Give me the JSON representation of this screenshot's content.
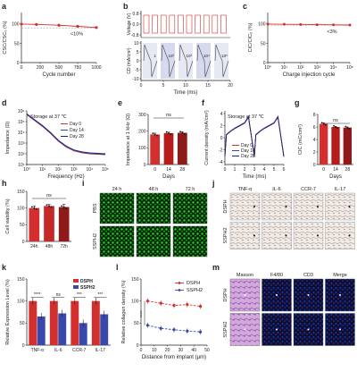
{
  "panels": {
    "a": "a",
    "b": "b",
    "c": "c",
    "d": "d",
    "e": "e",
    "f": "f",
    "g": "g",
    "h": "h",
    "i": "i",
    "j": "j",
    "k": "k",
    "l": "l",
    "m": "m"
  },
  "colors": {
    "red": "#d32f2f",
    "darkred": "#8e1a1a",
    "blue": "#3949ab",
    "navy": "#1a237e",
    "grid": "#bbbbbb",
    "fluor_green": "#27c21f",
    "ihc_bg": "#efe9e4",
    "he_pink": "#c99ad6",
    "if_blue": "#1630a8"
  },
  "a": {
    "ylabel": "CSC/CSC₀ (%)",
    "xlabel": "Cycle number",
    "yticks": [
      "0",
      "50",
      "100"
    ],
    "xticks": [
      "0",
      "200",
      "500",
      "750",
      "1000"
    ],
    "annotation": "<10%"
  },
  "b": {
    "ylabel_top": "Voltage (V)",
    "ylabel_bot": "CD (mA/cm²)",
    "yticks_top": [
      "0.8",
      "0.0",
      "-0.8"
    ],
    "yticks_bot": [
      "10",
      "5",
      "0",
      "-5",
      "-10"
    ],
    "xticks": [
      "0",
      "5",
      "10",
      "15",
      "20"
    ],
    "xlabel": "Time (ms)",
    "cycle_labels": [
      "1",
      "10²",
      "10³",
      "10⁴",
      "10⁵"
    ]
  },
  "c": {
    "ylabel": "CIC/CIC₀ (%)",
    "xlabel": "Charge injection cycle",
    "yticks": [
      "0",
      "50",
      "100"
    ],
    "xticks": [
      "10⁰",
      "10¹",
      "10²",
      "10³",
      "10⁴",
      "10⁵"
    ],
    "annotation": "<3%"
  },
  "d": {
    "ylabel": "Impedance (Ω)",
    "xlabel": "Frequency (Hz)",
    "yticks": [
      "10⁶",
      "10⁵",
      "10⁴",
      "10³",
      "10²",
      "10¹"
    ],
    "xticks": [
      "10⁰",
      "10¹",
      "10²",
      "10³",
      "10⁴",
      "10⁵"
    ],
    "note": "Storage at 37 ℃",
    "legend": [
      "Day 0",
      "Day 14",
      "Day 28"
    ]
  },
  "e": {
    "ylabel": "Impedance at 1 kHz (Ω)",
    "xlabel": "Days",
    "yticks": [
      "0",
      "100",
      "200",
      "300"
    ],
    "categories": [
      "0",
      "14",
      "28"
    ],
    "ns": "ns"
  },
  "f": {
    "ylabel": "Current density (mA/cm²)",
    "xlabel": "Time (ms)",
    "yticks": [
      "4",
      "2",
      "0",
      "-2",
      "-4"
    ],
    "xticks": [
      "0",
      "1",
      "2",
      "3",
      "4",
      "5",
      "6"
    ],
    "note": "Storage at 37 ℃",
    "legend": [
      "Day 0",
      "Day 14",
      "Day 28"
    ]
  },
  "g": {
    "ylabel": "CIC (mC/cm²)",
    "xlabel": "Days",
    "yticks": [
      "0",
      "2",
      "4",
      "6",
      "8"
    ],
    "categories": [
      "0",
      "14",
      "28"
    ],
    "ns": "ns"
  },
  "h": {
    "ylabel": "Cell viability (%)",
    "yticks": [
      "0",
      "50",
      "100",
      "150"
    ],
    "categories": [
      "24h",
      "48h",
      "72h"
    ],
    "ns": "ns"
  },
  "i": {
    "cols": [
      "24 h",
      "48 h",
      "72 h"
    ],
    "rows": [
      "PBS",
      "SSPH2"
    ]
  },
  "j": {
    "cols": [
      "TNF-α",
      "IL-6",
      "CCR-7",
      "IL-17"
    ],
    "rows": [
      "DSPH",
      "SSPH2"
    ]
  },
  "k": {
    "ylabel": "Relative Expression Level (%)",
    "yticks": [
      "0",
      "50",
      "100",
      "150"
    ],
    "categories": [
      "TNF-α",
      "IL-6",
      "CCR-7",
      "IL-17"
    ],
    "legend": [
      "DSPH",
      "SSPH2"
    ],
    "sig": [
      "****",
      "ns",
      "***",
      "***"
    ]
  },
  "l": {
    "ylabel": "Relative collagen density (%)",
    "xlabel": "Distance from implant (μm)",
    "yticks": [
      "0",
      "50",
      "100",
      "150"
    ],
    "xticks": [
      "0",
      "10",
      "20",
      "30",
      "40",
      "50"
    ],
    "legend": [
      "DSPH",
      "SSPH2"
    ],
    "sig": "****"
  },
  "m": {
    "cols": [
      "Masson",
      "F4/80",
      "CD3",
      "Merge"
    ],
    "rows": [
      "DSPH",
      "SSPH2"
    ]
  },
  "chart_data": [
    {
      "panel": "a",
      "type": "line",
      "x": [
        0,
        200,
        500,
        750,
        1000
      ],
      "values": [
        100,
        99,
        97,
        94,
        91
      ],
      "ylim": [
        0,
        130
      ],
      "xlim": [
        0,
        1000
      ],
      "ylabel": "CSC/CSC₀ (%)",
      "xlabel": "Cycle number"
    },
    {
      "panel": "c",
      "type": "line",
      "x": [
        0,
        1,
        2,
        3,
        4,
        5
      ],
      "values": [
        100,
        99.5,
        99,
        98.5,
        98,
        97.5
      ],
      "ylim": [
        0,
        130
      ],
      "xlim": [
        0,
        5
      ],
      "ylabel": "CIC/CIC₀ (%)",
      "xlabel": "Charge injection cycle"
    },
    {
      "panel": "d",
      "type": "line",
      "x": [
        0,
        0.5,
        1,
        1.5,
        2,
        2.5,
        3,
        3.5,
        4,
        4.5,
        5
      ],
      "series": [
        {
          "name": "Day 0",
          "values": [
            6.1,
            5.5,
            4.9,
            4.2,
            3.4,
            2.8,
            2.4,
            2.2,
            2.1,
            2.05,
            2.0
          ]
        },
        {
          "name": "Day 14",
          "values": [
            6.15,
            5.55,
            4.95,
            4.25,
            3.45,
            2.85,
            2.45,
            2.25,
            2.15,
            2.1,
            2.05
          ]
        },
        {
          "name": "Day 28",
          "values": [
            6.2,
            5.6,
            5.0,
            4.3,
            3.5,
            2.9,
            2.5,
            2.3,
            2.2,
            2.15,
            2.1
          ]
        }
      ],
      "ylim": [
        1,
        6.5
      ],
      "xlim": [
        0,
        5
      ],
      "ylabel": "Impedance (Ω)",
      "xlabel": "Frequency (Hz)"
    },
    {
      "panel": "e",
      "type": "bar",
      "categories": [
        "0",
        "14",
        "28"
      ],
      "values": [
        180,
        188,
        190
      ],
      "ylim": [
        0,
        300
      ],
      "ylabel": "Impedance at 1 kHz (Ω)"
    },
    {
      "panel": "f",
      "type": "line",
      "x": [
        0,
        0.15,
        0.6,
        1,
        1.5,
        2,
        2.4,
        3,
        3.15,
        3.6,
        4,
        4.5,
        5,
        5.4,
        6
      ],
      "series": [
        {
          "name": "Day 0",
          "values": [
            -3.6,
            0.6,
            1.3,
            1.8,
            2.3,
            2.8,
            4.0,
            -3.6,
            0.6,
            1.3,
            1.8,
            2.3,
            2.8,
            4.0,
            -3.6
          ]
        },
        {
          "name": "Day 14",
          "values": [
            -3.5,
            0.55,
            1.25,
            1.75,
            2.25,
            2.75,
            3.9,
            -3.5,
            0.55,
            1.25,
            1.75,
            2.25,
            2.75,
            3.9,
            -3.5
          ]
        },
        {
          "name": "Day 28",
          "values": [
            -3.4,
            0.5,
            1.2,
            1.7,
            2.2,
            2.7,
            3.8,
            -3.4,
            0.5,
            1.2,
            1.7,
            2.2,
            2.7,
            3.8,
            -3.4
          ]
        }
      ],
      "ylim": [
        -5,
        5
      ],
      "xlim": [
        0,
        6
      ],
      "ylabel": "Current density (mA/cm²)",
      "xlabel": "Time (ms)"
    },
    {
      "panel": "g",
      "type": "bar",
      "categories": [
        "0",
        "14",
        "28"
      ],
      "values": [
        6.5,
        6.0,
        5.9
      ],
      "ylim": [
        0,
        8
      ],
      "ylabel": "CIC (mC/cm²)"
    },
    {
      "panel": "h",
      "type": "bar",
      "categories": [
        "24h",
        "48h",
        "72h"
      ],
      "values": [
        100,
        106,
        103
      ],
      "ylim": [
        0,
        150
      ],
      "ylabel": "Cell viability (%)"
    },
    {
      "panel": "k",
      "type": "bar",
      "categories": [
        "TNF-α",
        "IL-6",
        "CCR-7",
        "IL-17"
      ],
      "series": [
        {
          "name": "DSPH",
          "values": [
            100,
            100,
            100,
            100
          ]
        },
        {
          "name": "SSPH2",
          "values": [
            65,
            72,
            50,
            70
          ]
        }
      ],
      "ylim": [
        0,
        150
      ],
      "ylabel": "Relative Expression Level (%)"
    },
    {
      "panel": "l",
      "type": "line",
      "x": [
        5,
        15,
        25,
        35,
        45
      ],
      "series": [
        {
          "name": "DSPH",
          "values": [
            100,
            95,
            90,
            92,
            88
          ]
        },
        {
          "name": "SSPH2",
          "values": [
            45,
            38,
            35,
            32,
            30
          ]
        }
      ],
      "ylim": [
        0,
        150
      ],
      "xlim": [
        0,
        50
      ],
      "ylabel": "Relative collagen density (%)",
      "xlabel": "Distance from implant (μm)"
    }
  ]
}
